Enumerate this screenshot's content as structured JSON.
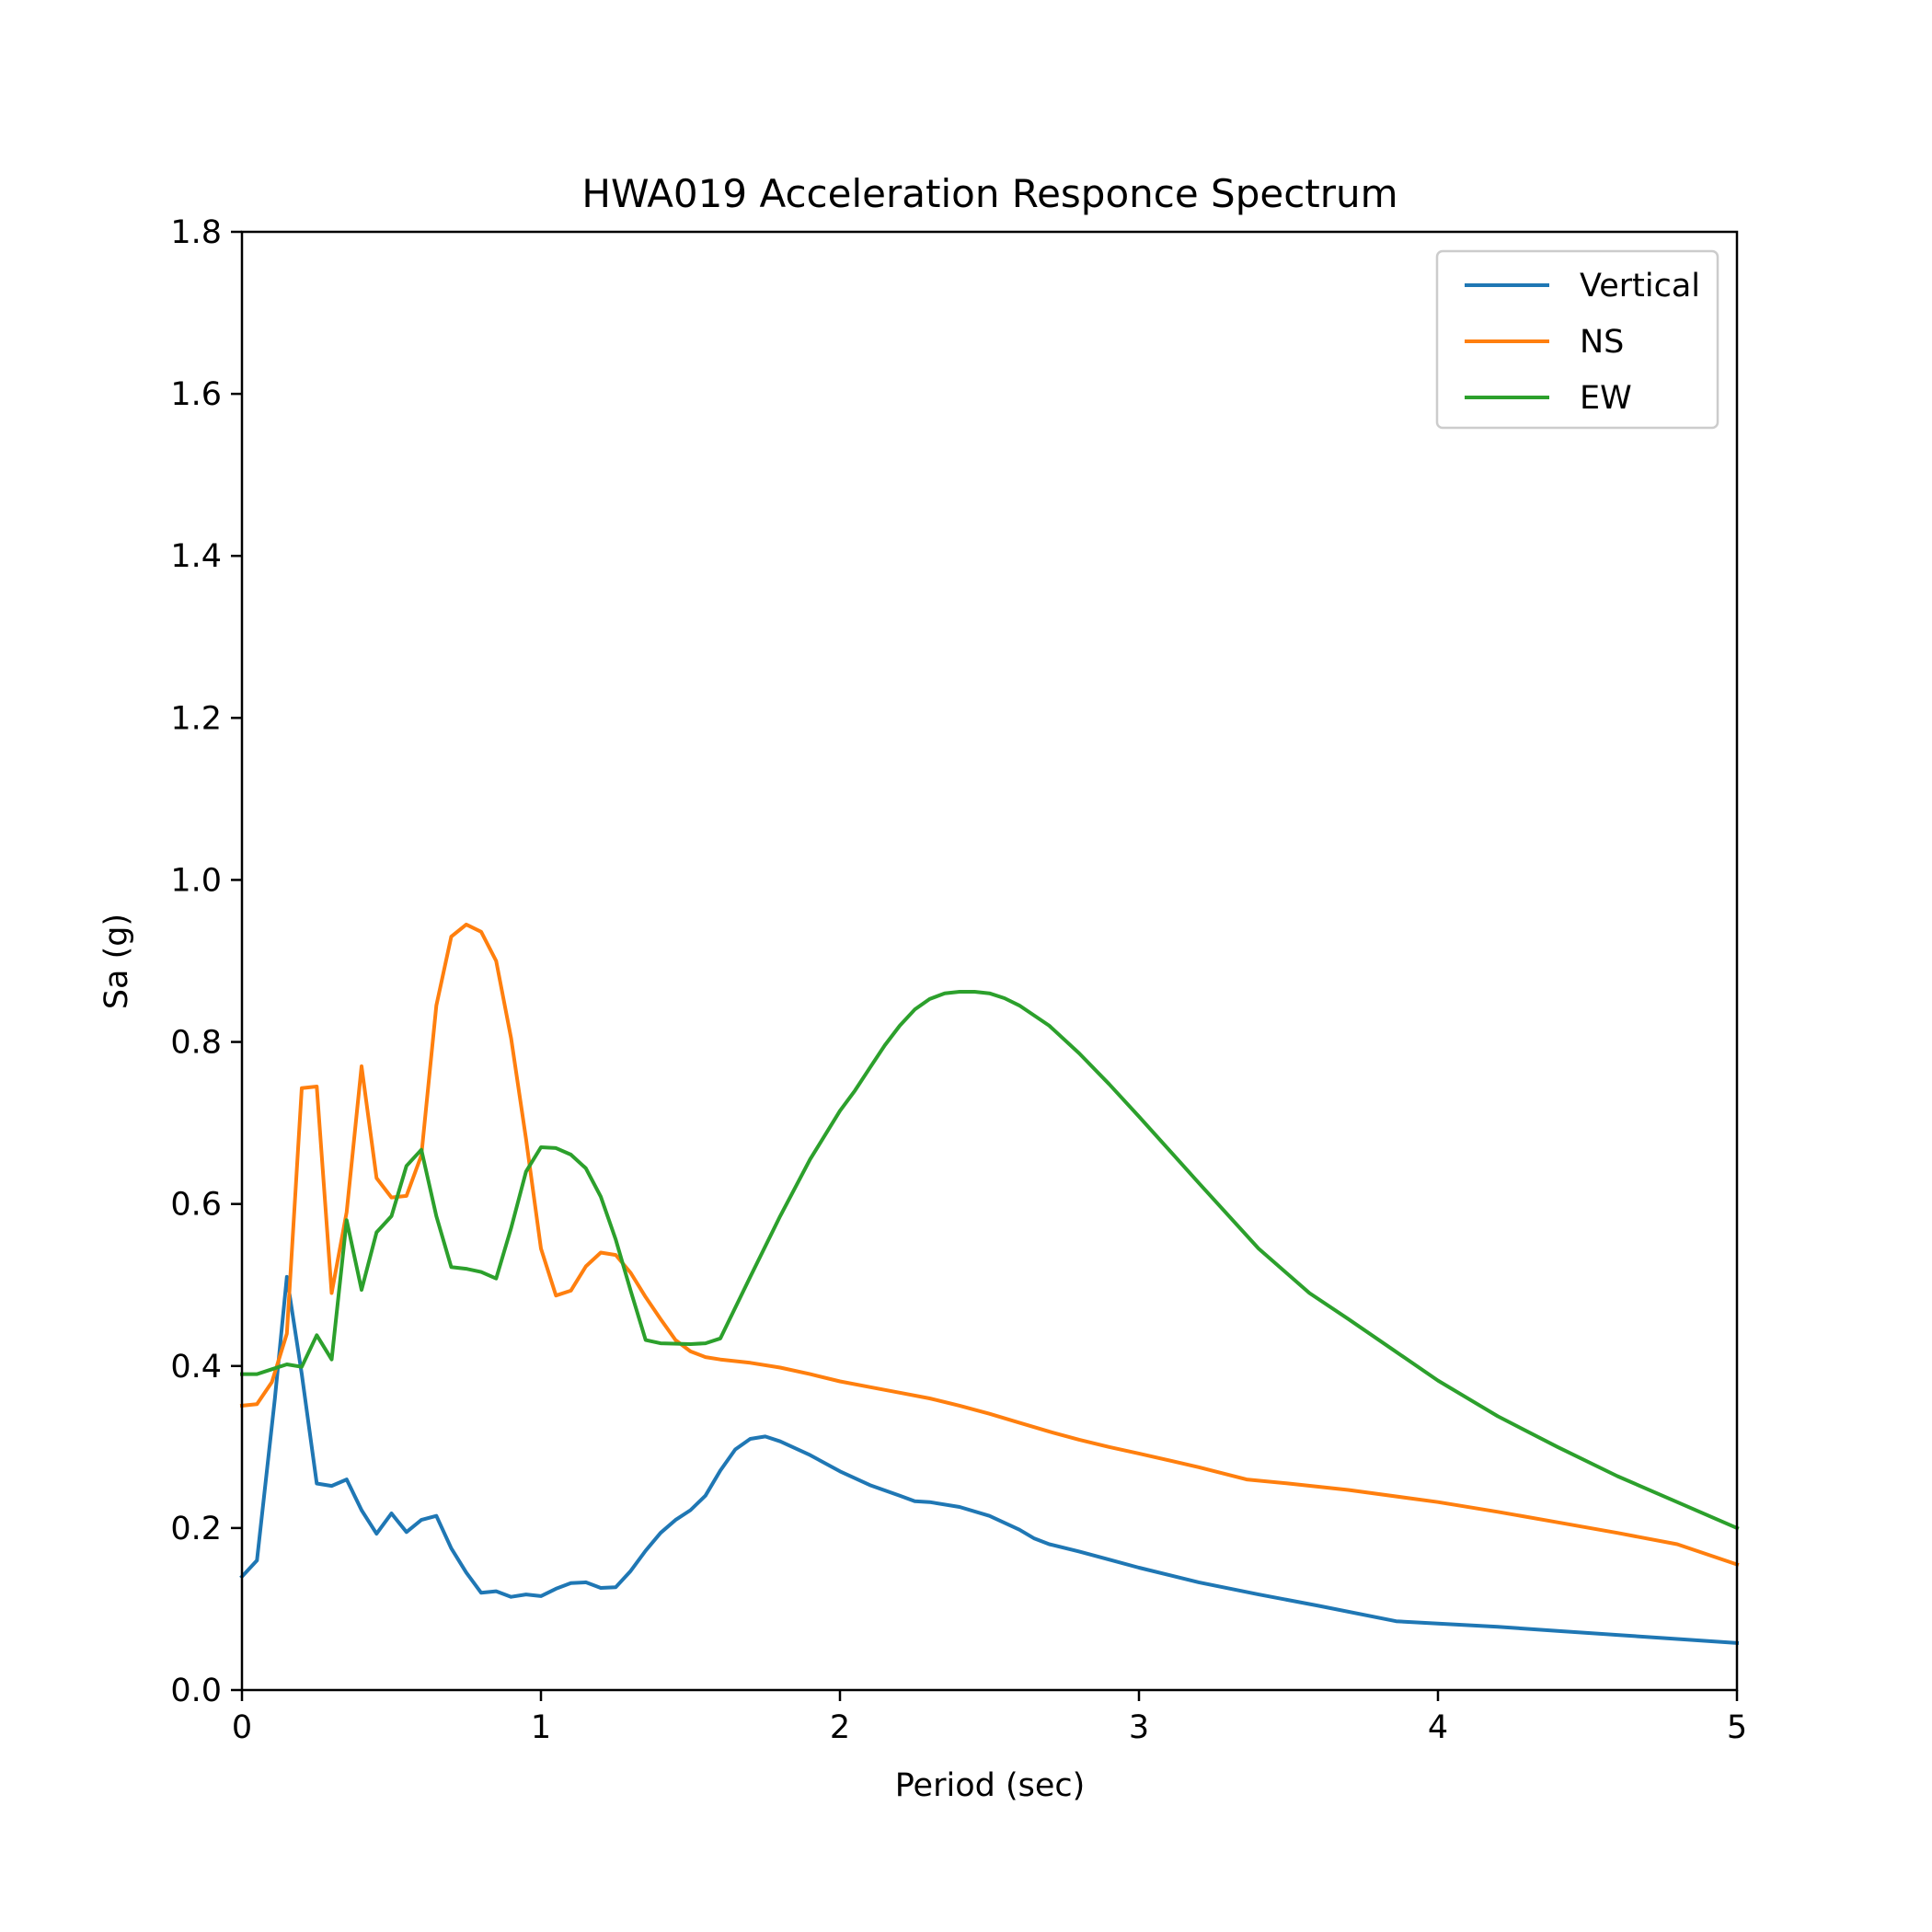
{
  "chart_data": {
    "type": "line",
    "title": "HWA019 Acceleration Responce Spectrum",
    "xlabel": "Period (sec)",
    "ylabel": "Sa (g)",
    "xlim": [
      0,
      5
    ],
    "ylim": [
      0,
      1.8
    ],
    "xticks": [
      0,
      1,
      2,
      3,
      4,
      5
    ],
    "yticks": [
      0.0,
      0.2,
      0.4,
      0.6,
      0.8,
      1.0,
      1.2,
      1.4,
      1.6,
      1.8
    ],
    "xtick_labels": [
      "0",
      "1",
      "2",
      "3",
      "4",
      "5"
    ],
    "ytick_labels": [
      "0.0",
      "0.2",
      "0.4",
      "0.6",
      "0.8",
      "1.0",
      "1.2",
      "1.4",
      "1.6",
      "1.8"
    ],
    "grid": false,
    "legend_position": "top-right",
    "series": [
      {
        "name": "Vertical",
        "color": "#1f77b4",
        "points": [
          [
            0,
            0.14
          ],
          [
            0.05,
            0.16
          ],
          [
            0.11,
            0.36
          ],
          [
            0.15,
            0.51
          ],
          [
            0.2,
            0.39
          ],
          [
            0.25,
            0.255
          ],
          [
            0.3,
            0.252
          ],
          [
            0.35,
            0.26
          ],
          [
            0.4,
            0.222
          ],
          [
            0.45,
            0.193
          ],
          [
            0.5,
            0.218
          ],
          [
            0.55,
            0.195
          ],
          [
            0.6,
            0.21
          ],
          [
            0.65,
            0.215
          ],
          [
            0.7,
            0.175
          ],
          [
            0.75,
            0.145
          ],
          [
            0.8,
            0.12
          ],
          [
            0.85,
            0.122
          ],
          [
            0.9,
            0.115
          ],
          [
            0.95,
            0.118
          ],
          [
            1.0,
            0.116
          ],
          [
            1.05,
            0.125
          ],
          [
            1.1,
            0.132
          ],
          [
            1.15,
            0.133
          ],
          [
            1.2,
            0.126
          ],
          [
            1.25,
            0.127
          ],
          [
            1.3,
            0.147
          ],
          [
            1.35,
            0.172
          ],
          [
            1.4,
            0.194
          ],
          [
            1.45,
            0.21
          ],
          [
            1.5,
            0.222
          ],
          [
            1.55,
            0.24
          ],
          [
            1.6,
            0.271
          ],
          [
            1.65,
            0.297
          ],
          [
            1.7,
            0.31
          ],
          [
            1.75,
            0.313
          ],
          [
            1.8,
            0.307
          ],
          [
            1.9,
            0.29
          ],
          [
            2.0,
            0.27
          ],
          [
            2.1,
            0.253
          ],
          [
            2.2,
            0.24
          ],
          [
            2.25,
            0.233
          ],
          [
            2.3,
            0.232
          ],
          [
            2.4,
            0.226
          ],
          [
            2.5,
            0.215
          ],
          [
            2.6,
            0.198
          ],
          [
            2.65,
            0.187
          ],
          [
            2.7,
            0.18
          ],
          [
            2.8,
            0.171
          ],
          [
            2.9,
            0.161
          ],
          [
            3.0,
            0.151
          ],
          [
            3.2,
            0.133
          ],
          [
            3.4,
            0.118
          ],
          [
            3.6,
            0.104
          ],
          [
            3.86,
            0.085
          ],
          [
            4.0,
            0.082
          ],
          [
            4.2,
            0.078
          ],
          [
            4.4,
            0.073
          ],
          [
            4.6,
            0.068
          ],
          [
            4.8,
            0.063
          ],
          [
            5.0,
            0.058
          ]
        ]
      },
      {
        "name": "NS",
        "color": "#ff7f0e",
        "points": [
          [
            0,
            0.351
          ],
          [
            0.05,
            0.353
          ],
          [
            0.1,
            0.38
          ],
          [
            0.15,
            0.44
          ],
          [
            0.2,
            0.743
          ],
          [
            0.25,
            0.745
          ],
          [
            0.3,
            0.49
          ],
          [
            0.35,
            0.59
          ],
          [
            0.4,
            0.77
          ],
          [
            0.45,
            0.632
          ],
          [
            0.5,
            0.608
          ],
          [
            0.55,
            0.61
          ],
          [
            0.6,
            0.66
          ],
          [
            0.65,
            0.845
          ],
          [
            0.7,
            0.93
          ],
          [
            0.75,
            0.945
          ],
          [
            0.8,
            0.936
          ],
          [
            0.85,
            0.9
          ],
          [
            0.9,
            0.805
          ],
          [
            0.95,
            0.68
          ],
          [
            1.0,
            0.545
          ],
          [
            1.05,
            0.487
          ],
          [
            1.1,
            0.493
          ],
          [
            1.15,
            0.523
          ],
          [
            1.2,
            0.54
          ],
          [
            1.25,
            0.537
          ],
          [
            1.3,
            0.515
          ],
          [
            1.35,
            0.485
          ],
          [
            1.4,
            0.458
          ],
          [
            1.45,
            0.432
          ],
          [
            1.5,
            0.418
          ],
          [
            1.55,
            0.411
          ],
          [
            1.6,
            0.408
          ],
          [
            1.7,
            0.404
          ],
          [
            1.8,
            0.398
          ],
          [
            1.9,
            0.39
          ],
          [
            2.0,
            0.381
          ],
          [
            2.1,
            0.374
          ],
          [
            2.2,
            0.367
          ],
          [
            2.3,
            0.36
          ],
          [
            2.4,
            0.351
          ],
          [
            2.5,
            0.341
          ],
          [
            2.6,
            0.33
          ],
          [
            2.7,
            0.319
          ],
          [
            2.8,
            0.309
          ],
          [
            2.9,
            0.3
          ],
          [
            3.0,
            0.292
          ],
          [
            3.2,
            0.275
          ],
          [
            3.36,
            0.26
          ],
          [
            3.5,
            0.255
          ],
          [
            3.7,
            0.247
          ],
          [
            4.0,
            0.232
          ],
          [
            4.2,
            0.22
          ],
          [
            4.4,
            0.207
          ],
          [
            4.6,
            0.194
          ],
          [
            4.8,
            0.18
          ],
          [
            5.0,
            0.155
          ]
        ]
      },
      {
        "name": "EW",
        "color": "#2ca02c",
        "points": [
          [
            0,
            0.39
          ],
          [
            0.05,
            0.39
          ],
          [
            0.1,
            0.396
          ],
          [
            0.15,
            0.402
          ],
          [
            0.2,
            0.399
          ],
          [
            0.25,
            0.438
          ],
          [
            0.3,
            0.408
          ],
          [
            0.35,
            0.58
          ],
          [
            0.4,
            0.494
          ],
          [
            0.45,
            0.565
          ],
          [
            0.5,
            0.585
          ],
          [
            0.55,
            0.647
          ],
          [
            0.6,
            0.667
          ],
          [
            0.65,
            0.585
          ],
          [
            0.7,
            0.522
          ],
          [
            0.75,
            0.52
          ],
          [
            0.8,
            0.516
          ],
          [
            0.85,
            0.508
          ],
          [
            0.9,
            0.57
          ],
          [
            0.95,
            0.64
          ],
          [
            1.0,
            0.67
          ],
          [
            1.05,
            0.669
          ],
          [
            1.1,
            0.661
          ],
          [
            1.15,
            0.644
          ],
          [
            1.2,
            0.609
          ],
          [
            1.25,
            0.556
          ],
          [
            1.3,
            0.493
          ],
          [
            1.35,
            0.432
          ],
          [
            1.4,
            0.428
          ],
          [
            1.5,
            0.427
          ],
          [
            1.55,
            0.428
          ],
          [
            1.6,
            0.434
          ],
          [
            1.7,
            0.51
          ],
          [
            1.8,
            0.585
          ],
          [
            1.9,
            0.655
          ],
          [
            2.0,
            0.715
          ],
          [
            2.05,
            0.74
          ],
          [
            2.1,
            0.768
          ],
          [
            2.15,
            0.796
          ],
          [
            2.2,
            0.82
          ],
          [
            2.25,
            0.84
          ],
          [
            2.3,
            0.853
          ],
          [
            2.35,
            0.86
          ],
          [
            2.4,
            0.862
          ],
          [
            2.45,
            0.862
          ],
          [
            2.5,
            0.86
          ],
          [
            2.55,
            0.854
          ],
          [
            2.6,
            0.845
          ],
          [
            2.7,
            0.82
          ],
          [
            2.8,
            0.786
          ],
          [
            2.9,
            0.748
          ],
          [
            3.0,
            0.708
          ],
          [
            3.2,
            0.626
          ],
          [
            3.4,
            0.545
          ],
          [
            3.57,
            0.49
          ],
          [
            3.7,
            0.458
          ],
          [
            3.85,
            0.42
          ],
          [
            4.0,
            0.382
          ],
          [
            4.2,
            0.338
          ],
          [
            4.4,
            0.3
          ],
          [
            4.6,
            0.264
          ],
          [
            4.8,
            0.232
          ],
          [
            5.0,
            0.2
          ]
        ]
      }
    ]
  }
}
